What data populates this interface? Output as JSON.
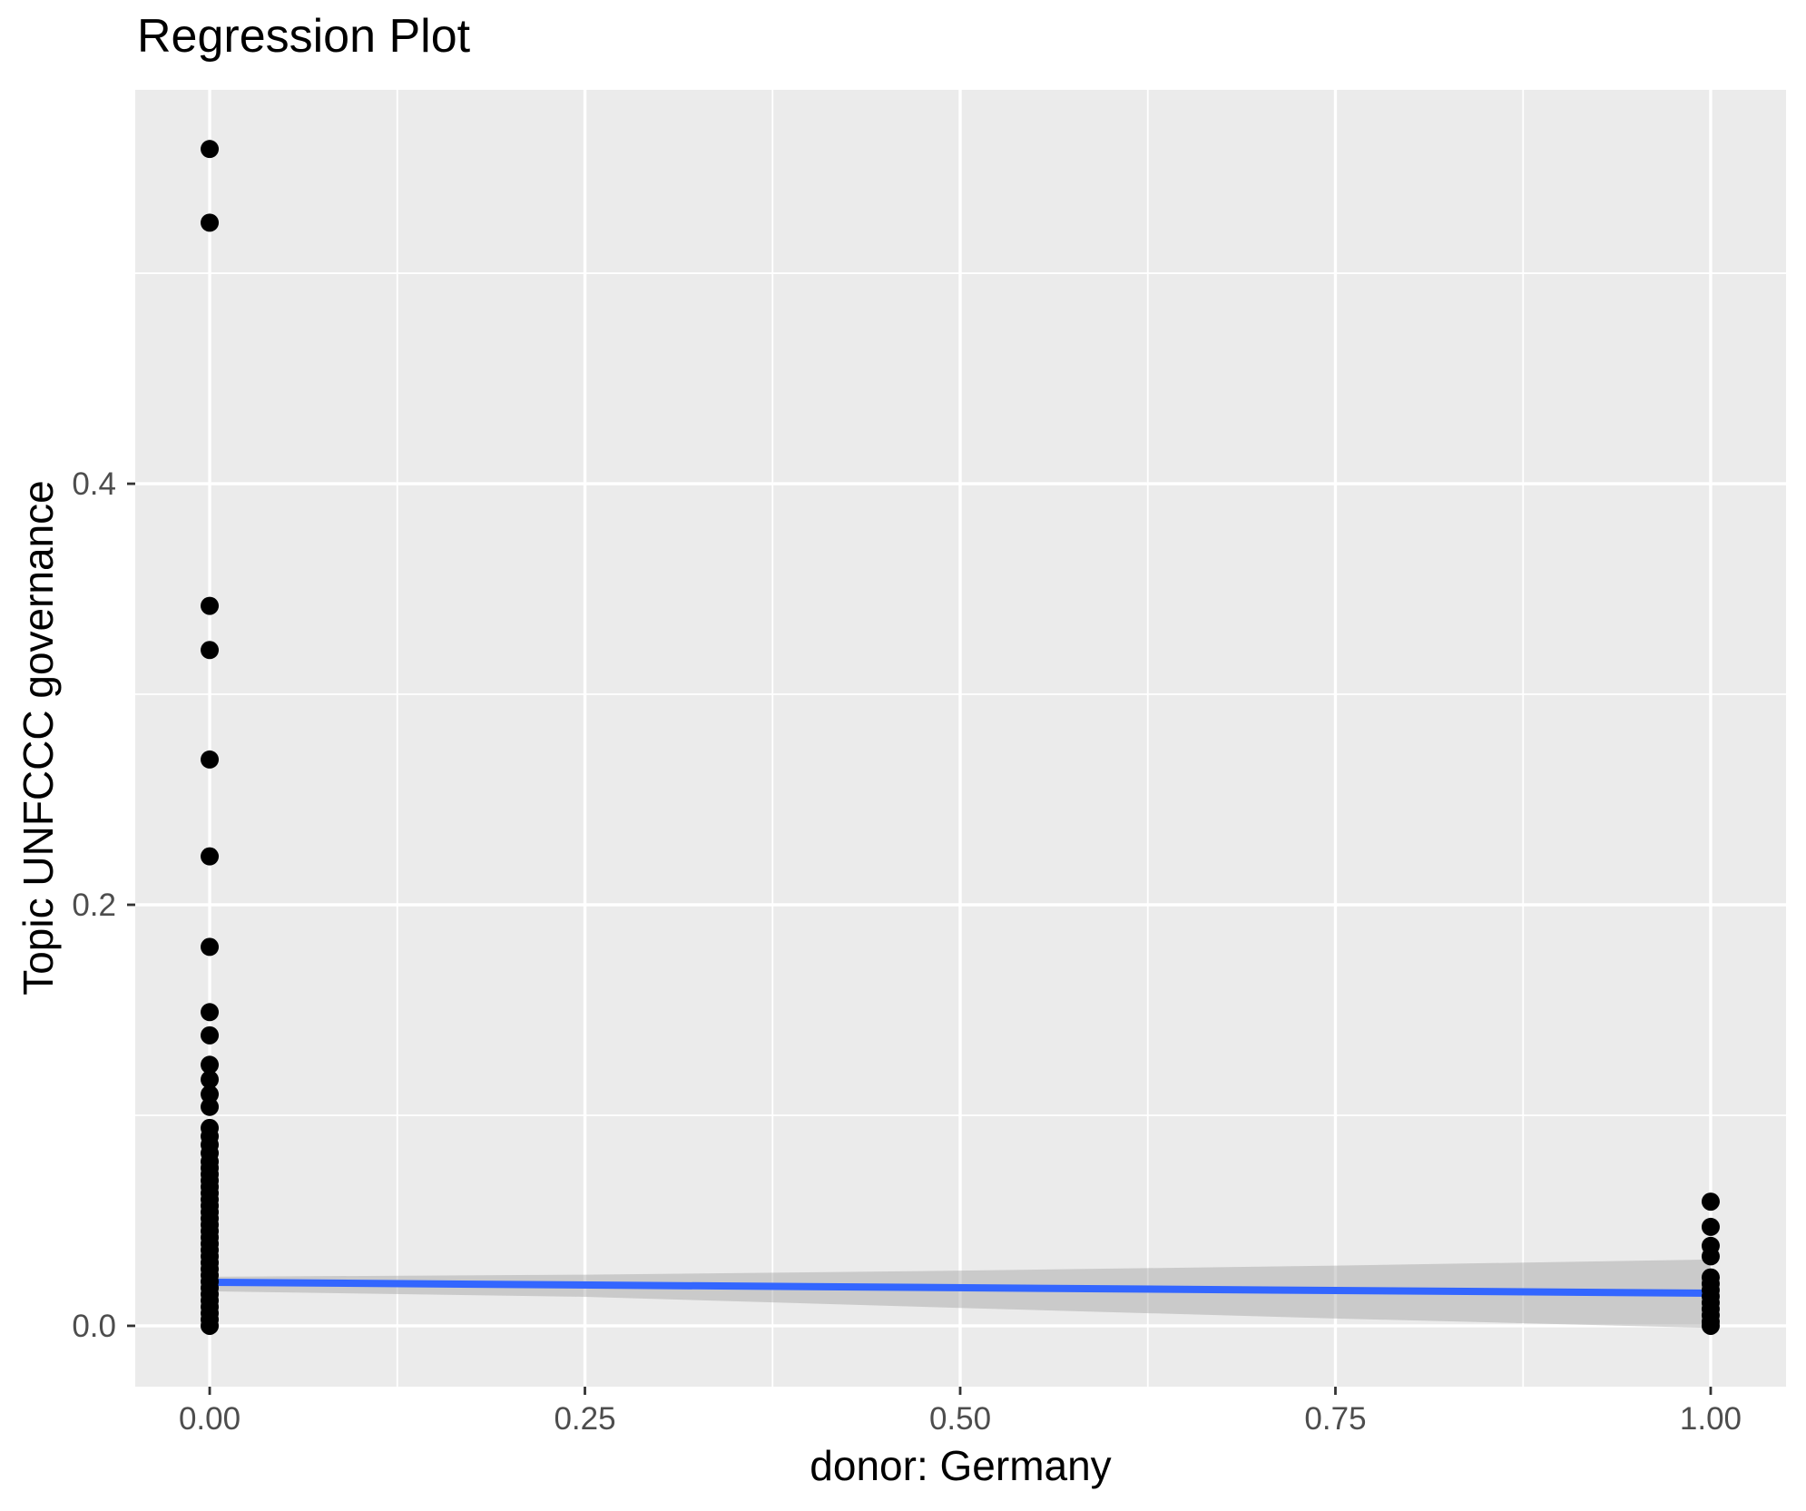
{
  "chart_data": {
    "type": "scatter",
    "title": "Regression Plot",
    "xlabel": "donor: Germany",
    "ylabel": "Topic UNFCCC governance",
    "xlim": [
      -0.0496,
      1.0502
    ],
    "ylim": [
      -0.0289,
      0.5871
    ],
    "x_ticks": {
      "values": [
        0,
        0.25,
        0.5,
        0.75,
        1
      ],
      "labels": [
        "0.00",
        "0.25",
        "0.50",
        "0.75",
        "1.00"
      ]
    },
    "x_minor_breaks": [
      0.125,
      0.375,
      0.625,
      0.875
    ],
    "y_ticks": {
      "values": [
        0,
        0.2,
        0.4
      ],
      "labels": [
        "0.0",
        "0.2",
        "0.4"
      ]
    },
    "y_minor_breaks": [
      0.1,
      0.3,
      0.5
    ],
    "grid": true,
    "legend_position": "none",
    "point_radius_px": 10,
    "series": [
      {
        "name": "donor = 0",
        "x": 0,
        "y": [
          0.559,
          0.524,
          0.342,
          0.321,
          0.269,
          0.223,
          0.18,
          0.149,
          0.138,
          0.124,
          0.117,
          0.11,
          0.104,
          0.094,
          0.09,
          0.086,
          0.082,
          0.078,
          0.075,
          0.072,
          0.069,
          0.066,
          0.063,
          0.06,
          0.057,
          0.054,
          0.051,
          0.048,
          0.045,
          0.042,
          0.039,
          0.036,
          0.033,
          0.03,
          0.027,
          0.024,
          0.021,
          0.018,
          0.015,
          0.012,
          0.009,
          0.006,
          0.003,
          0.0
        ]
      },
      {
        "name": "donor = 1",
        "x": 1,
        "y": [
          0.059,
          0.047,
          0.038,
          0.033,
          0.023,
          0.02,
          0.017,
          0.014,
          0.011,
          0.008,
          0.005,
          0.002,
          0.0
        ]
      }
    ],
    "smooth": {
      "method": "lm",
      "line": {
        "x": [
          0,
          1
        ],
        "y": [
          0.0207,
          0.0155
        ]
      },
      "band": {
        "x": [
          0,
          0.25,
          0.5,
          0.75,
          1
        ],
        "upper": [
          0.0233,
          0.0243,
          0.0262,
          0.0286,
          0.0315
        ],
        "lower": [
          0.0164,
          0.0138,
          0.0085,
          0.0035,
          -0.001
        ]
      }
    },
    "colors": {
      "background": "#FFFFFF",
      "panel_bg": "#EBEBEB",
      "grid_major": "#FFFFFF",
      "grid_minor": "#FFFFFF",
      "point": "#000000",
      "smooth_line": "#3366FF",
      "smooth_band": "#999999",
      "smooth_band_opacity": 0.4,
      "tick_mark": "#333333",
      "tick_label": "#4D4D4D",
      "title": "#000000",
      "axis_title": "#000000"
    }
  }
}
